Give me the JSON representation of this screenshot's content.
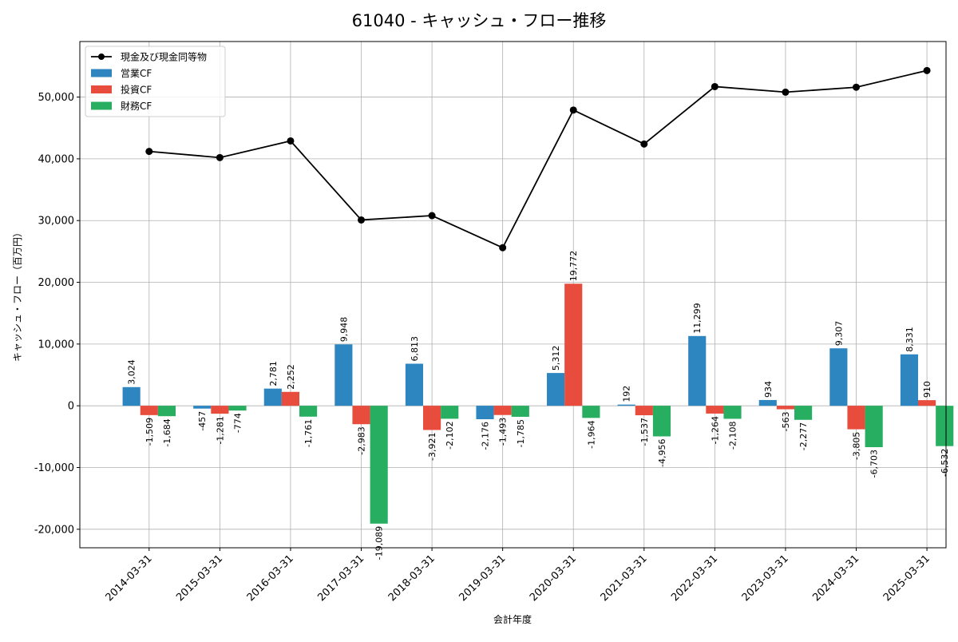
{
  "chart_data": {
    "type": "bar",
    "title": "61040 - キャッシュ・フロー推移",
    "xlabel": "会計年度",
    "ylabel": "キャッシュ・フロー（百万円）",
    "ylim": [
      -23000,
      59000
    ],
    "yticks": [
      -20000,
      -10000,
      0,
      10000,
      20000,
      30000,
      40000,
      50000
    ],
    "ytick_labels": [
      "-20,000",
      "-10,000",
      "0",
      "10,000",
      "20,000",
      "30,000",
      "40,000",
      "50,000"
    ],
    "grid": true,
    "legend_position": "top-left",
    "categories": [
      "2014-03-31",
      "2015-03-31",
      "2016-03-31",
      "2017-03-31",
      "2018-03-31",
      "2019-03-31",
      "2020-03-31",
      "2021-03-31",
      "2022-03-31",
      "2023-03-31",
      "2024-03-31",
      "2025-03-31"
    ],
    "series": [
      {
        "name": "営業CF",
        "kind": "bar",
        "color": "#2e86c1",
        "values": [
          3024,
          -457,
          2781,
          9948,
          6813,
          -2176,
          5312,
          192,
          11299,
          934,
          9307,
          8331
        ],
        "labels": [
          "3,024",
          "-457",
          "2,781",
          "9,948",
          "6,813",
          "-2,176",
          "5,312",
          "192",
          "11,299",
          "934",
          "9,307",
          "8,331"
        ]
      },
      {
        "name": "投資CF",
        "kind": "bar",
        "color": "#e74c3c",
        "values": [
          -1509,
          -1281,
          2252,
          -2983,
          -3921,
          -1493,
          19772,
          -1537,
          -1264,
          -563,
          -3805,
          910
        ],
        "labels": [
          "-1,509",
          "-1,281",
          "2,252",
          "-2,983",
          "-3,921",
          "-1,493",
          "19,772",
          "-1,537",
          "-1,264",
          "-563",
          "-3,805",
          "910"
        ]
      },
      {
        "name": "財務CF",
        "kind": "bar",
        "color": "#27ae60",
        "values": [
          -1684,
          -774,
          -1761,
          -19089,
          -2102,
          -1785,
          -1964,
          -4956,
          -2108,
          -2277,
          -6703,
          -6532
        ],
        "labels": [
          "-1,684",
          "-774",
          "-1,761",
          "-19,089",
          "-2,102",
          "-1,785",
          "-1,964",
          "-4,956",
          "-2,108",
          "-2,277",
          "-6,703",
          "-6,532"
        ]
      },
      {
        "name": "現金及び現金同等物",
        "kind": "line",
        "color": "#000000",
        "values": [
          41200,
          40200,
          42900,
          30100,
          30800,
          25600,
          47900,
          42400,
          51700,
          50800,
          51600,
          54300
        ]
      }
    ]
  }
}
